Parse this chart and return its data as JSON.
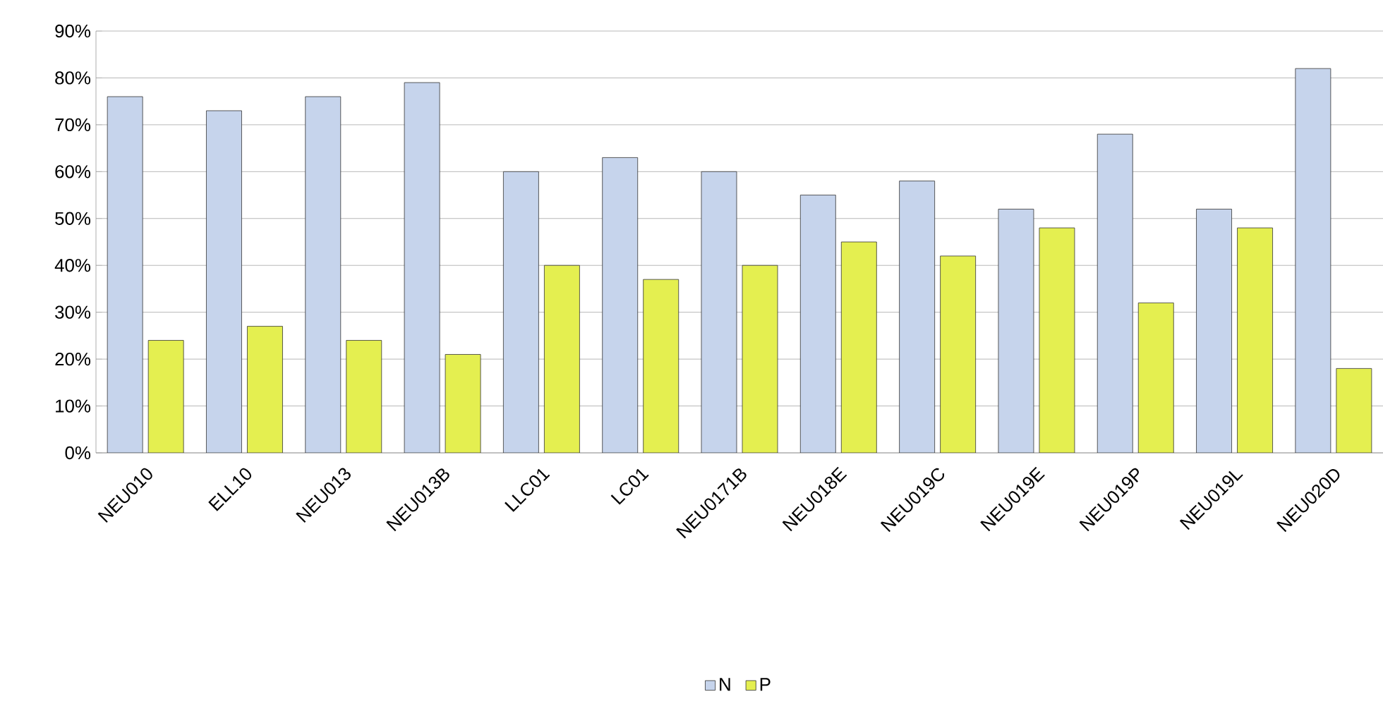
{
  "chart_data": {
    "type": "bar",
    "categories": [
      "NEU010",
      "ELL10",
      "NEU013",
      "NEU013B",
      "LLC01",
      "LC01",
      "NEU0171B",
      "NEU018E",
      "NEU019C",
      "NEU019E",
      "NEU019P",
      "NEU019L",
      "NEU020D"
    ],
    "series": [
      {
        "name": "N",
        "color": "#c6d4ec",
        "values": [
          76,
          73,
          76,
          79,
          60,
          63,
          60,
          55,
          58,
          52,
          68,
          52,
          82
        ]
      },
      {
        "name": "P",
        "color": "#e4ef50",
        "values": [
          24,
          27,
          24,
          21,
          40,
          37,
          40,
          45,
          42,
          48,
          32,
          48,
          18
        ]
      }
    ],
    "ylim": [
      0,
      90
    ],
    "yticks": [
      {
        "value": 0,
        "label": "0%"
      },
      {
        "value": 10,
        "label": "10%"
      },
      {
        "value": 20,
        "label": "20%"
      },
      {
        "value": 30,
        "label": "30%"
      },
      {
        "value": 40,
        "label": "40%"
      },
      {
        "value": 50,
        "label": "50%"
      },
      {
        "value": 60,
        "label": "60%"
      },
      {
        "value": 70,
        "label": "70%"
      },
      {
        "value": 80,
        "label": "80%"
      },
      {
        "value": 90,
        "label": "90%"
      }
    ],
    "grid": "y",
    "legend": "bottom"
  }
}
